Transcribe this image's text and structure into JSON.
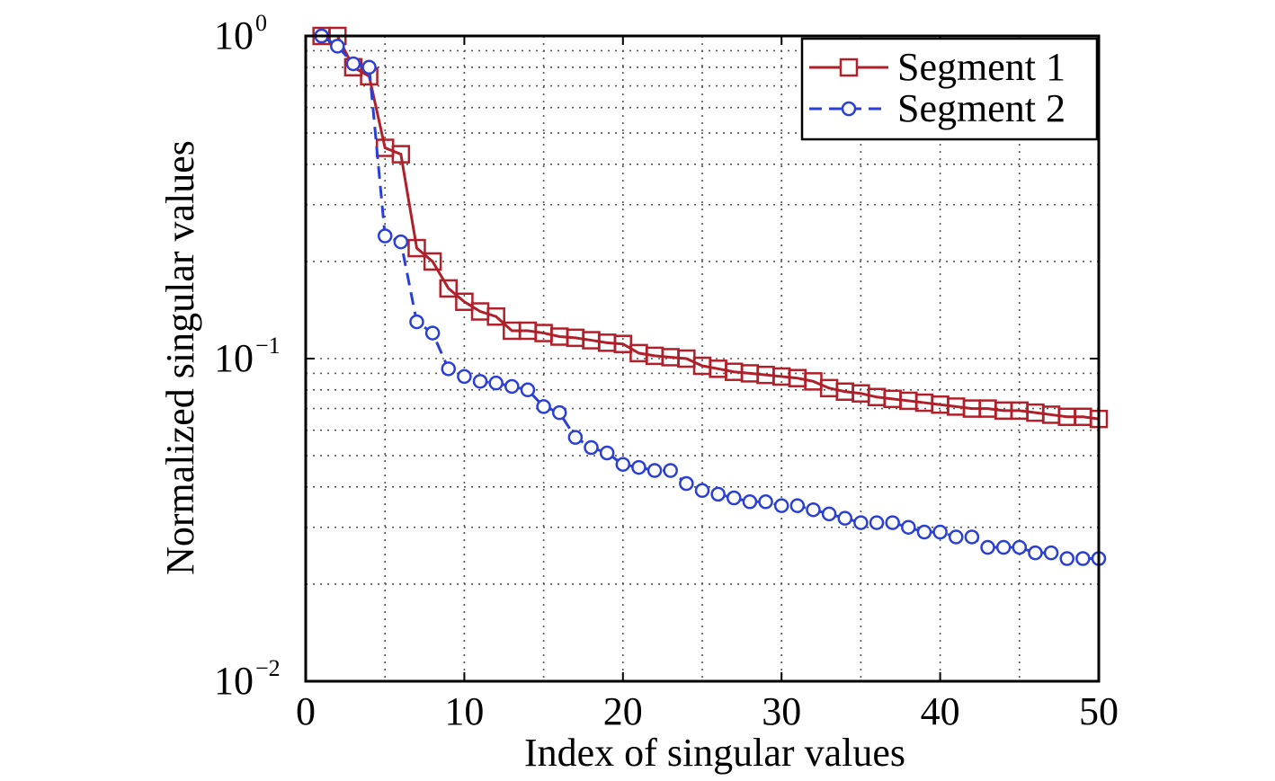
{
  "chart_data": {
    "type": "line",
    "xlabel": "Index of singular values",
    "ylabel": "Normalized singular values",
    "xlim": [
      0,
      50
    ],
    "ylim": [
      0.01,
      1
    ],
    "yscale": "log",
    "grid": true,
    "legend_position": "top-right",
    "xticks": [
      0,
      10,
      20,
      30,
      40,
      50
    ],
    "xtick_labels": [
      "0",
      "10",
      "20",
      "30",
      "40",
      "50"
    ],
    "yticks": [
      {
        "value": 1,
        "base": "10",
        "exp": "0"
      },
      {
        "value": 0.1,
        "base": "10",
        "exp": "−1"
      },
      {
        "value": 0.01,
        "base": "10",
        "exp": "−2"
      }
    ],
    "x": [
      1,
      2,
      3,
      4,
      5,
      6,
      7,
      8,
      9,
      10,
      11,
      12,
      13,
      14,
      15,
      16,
      17,
      18,
      19,
      20,
      21,
      22,
      23,
      24,
      25,
      26,
      27,
      28,
      29,
      30,
      31,
      32,
      33,
      34,
      35,
      36,
      37,
      38,
      39,
      40,
      41,
      42,
      43,
      44,
      45,
      46,
      47,
      48,
      49,
      50
    ],
    "series": [
      {
        "name": "Segment 1",
        "color": "#b0202a",
        "line_style": "solid",
        "marker": "square",
        "values": [
          1.0,
          1.0,
          0.8,
          0.75,
          0.45,
          0.43,
          0.22,
          0.2,
          0.165,
          0.15,
          0.14,
          0.135,
          0.122,
          0.122,
          0.12,
          0.117,
          0.116,
          0.114,
          0.112,
          0.111,
          0.104,
          0.102,
          0.101,
          0.1,
          0.095,
          0.093,
          0.091,
          0.09,
          0.089,
          0.088,
          0.087,
          0.085,
          0.081,
          0.079,
          0.078,
          0.076,
          0.075,
          0.074,
          0.073,
          0.072,
          0.071,
          0.07,
          0.07,
          0.069,
          0.069,
          0.068,
          0.067,
          0.066,
          0.066,
          0.065
        ]
      },
      {
        "name": "Segment 2",
        "color": "#2a3fd4",
        "line_style": "dashed",
        "marker": "circle",
        "values": [
          1.0,
          0.93,
          0.82,
          0.8,
          0.24,
          0.23,
          0.13,
          0.12,
          0.093,
          0.088,
          0.085,
          0.084,
          0.082,
          0.08,
          0.071,
          0.068,
          0.057,
          0.053,
          0.051,
          0.047,
          0.046,
          0.045,
          0.045,
          0.041,
          0.039,
          0.038,
          0.037,
          0.036,
          0.036,
          0.035,
          0.035,
          0.034,
          0.033,
          0.032,
          0.031,
          0.031,
          0.031,
          0.03,
          0.029,
          0.029,
          0.028,
          0.028,
          0.026,
          0.026,
          0.026,
          0.025,
          0.025,
          0.024,
          0.024,
          0.024
        ]
      }
    ]
  }
}
